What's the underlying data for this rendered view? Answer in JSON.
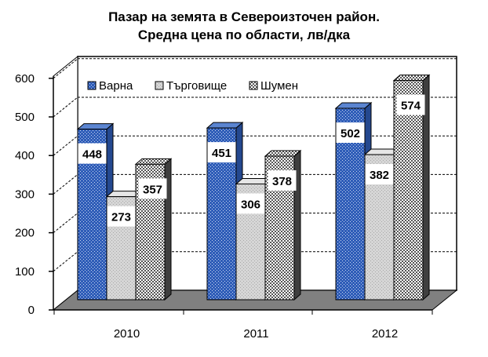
{
  "chart_data": {
    "type": "bar",
    "title": [
      "Пазар на земята в Североизточен  район.",
      "Средна цена по области, лв/дка"
    ],
    "categories": [
      "2010",
      "2011",
      "2012"
    ],
    "series": [
      {
        "name": "Варна",
        "values": [
          448,
          451,
          502
        ],
        "pattern": "blue-dots",
        "color": "#3f6fc4"
      },
      {
        "name": "Търговище",
        "values": [
          273,
          306,
          382
        ],
        "pattern": "gray-dots",
        "color": "#c8c8c8"
      },
      {
        "name": "Шумен",
        "values": [
          357,
          378,
          574
        ],
        "pattern": "checker",
        "color": "#888888"
      }
    ],
    "yticks": [
      "0",
      "100",
      "200",
      "300",
      "400",
      "500",
      "600"
    ],
    "ylim": [
      0,
      600
    ],
    "grid": true,
    "legend": "top-left"
  }
}
